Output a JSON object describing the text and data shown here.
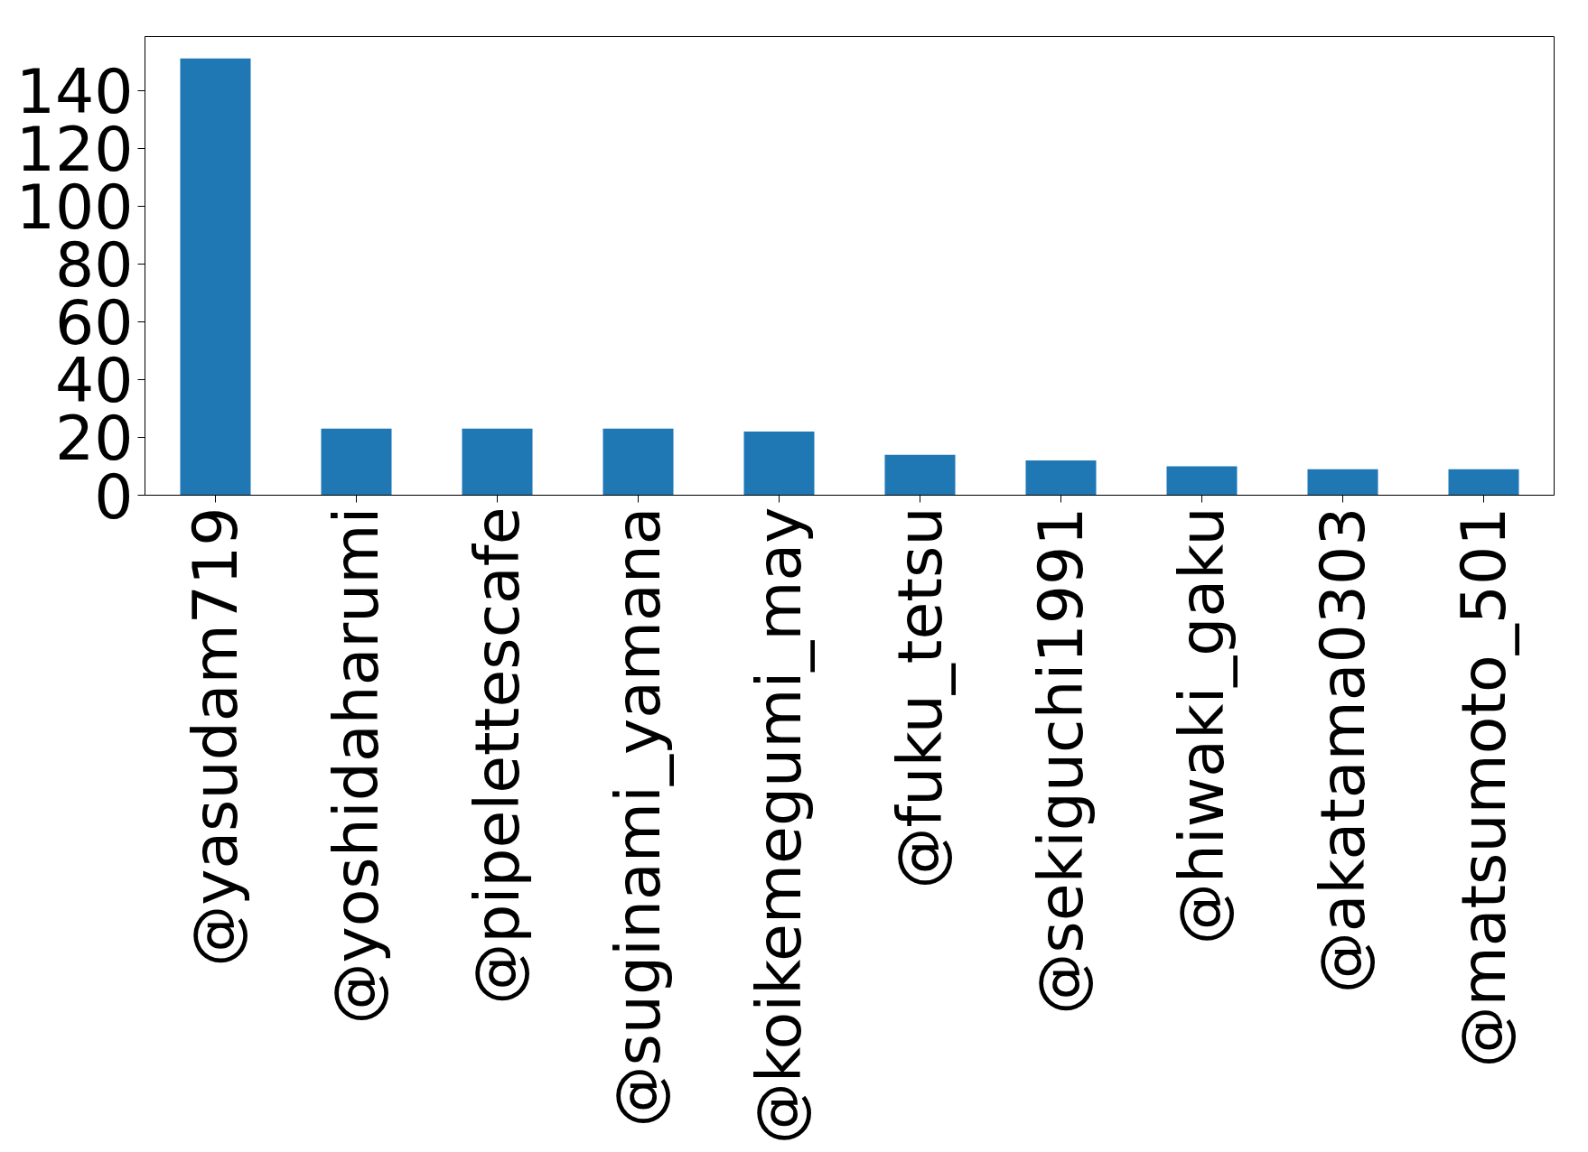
{
  "chart_data": {
    "type": "bar",
    "categories": [
      "@yasudam719",
      "@yoshidaharumi",
      "@pipelettescafe",
      "@suginami_yamana",
      "@koikemegumi_may",
      "@fuku_tetsu",
      "@sekiguchi1991",
      "@hiwaki_gaku",
      "@akatama0303",
      "@matsumoto_501"
    ],
    "values": [
      151,
      23,
      23,
      23,
      22,
      14,
      12,
      10,
      9,
      9
    ],
    "color": "#1f77b4",
    "ylim": [
      0,
      158.6
    ],
    "yticks": [
      0,
      20,
      40,
      60,
      80,
      100,
      120,
      140
    ],
    "grid": false
  }
}
